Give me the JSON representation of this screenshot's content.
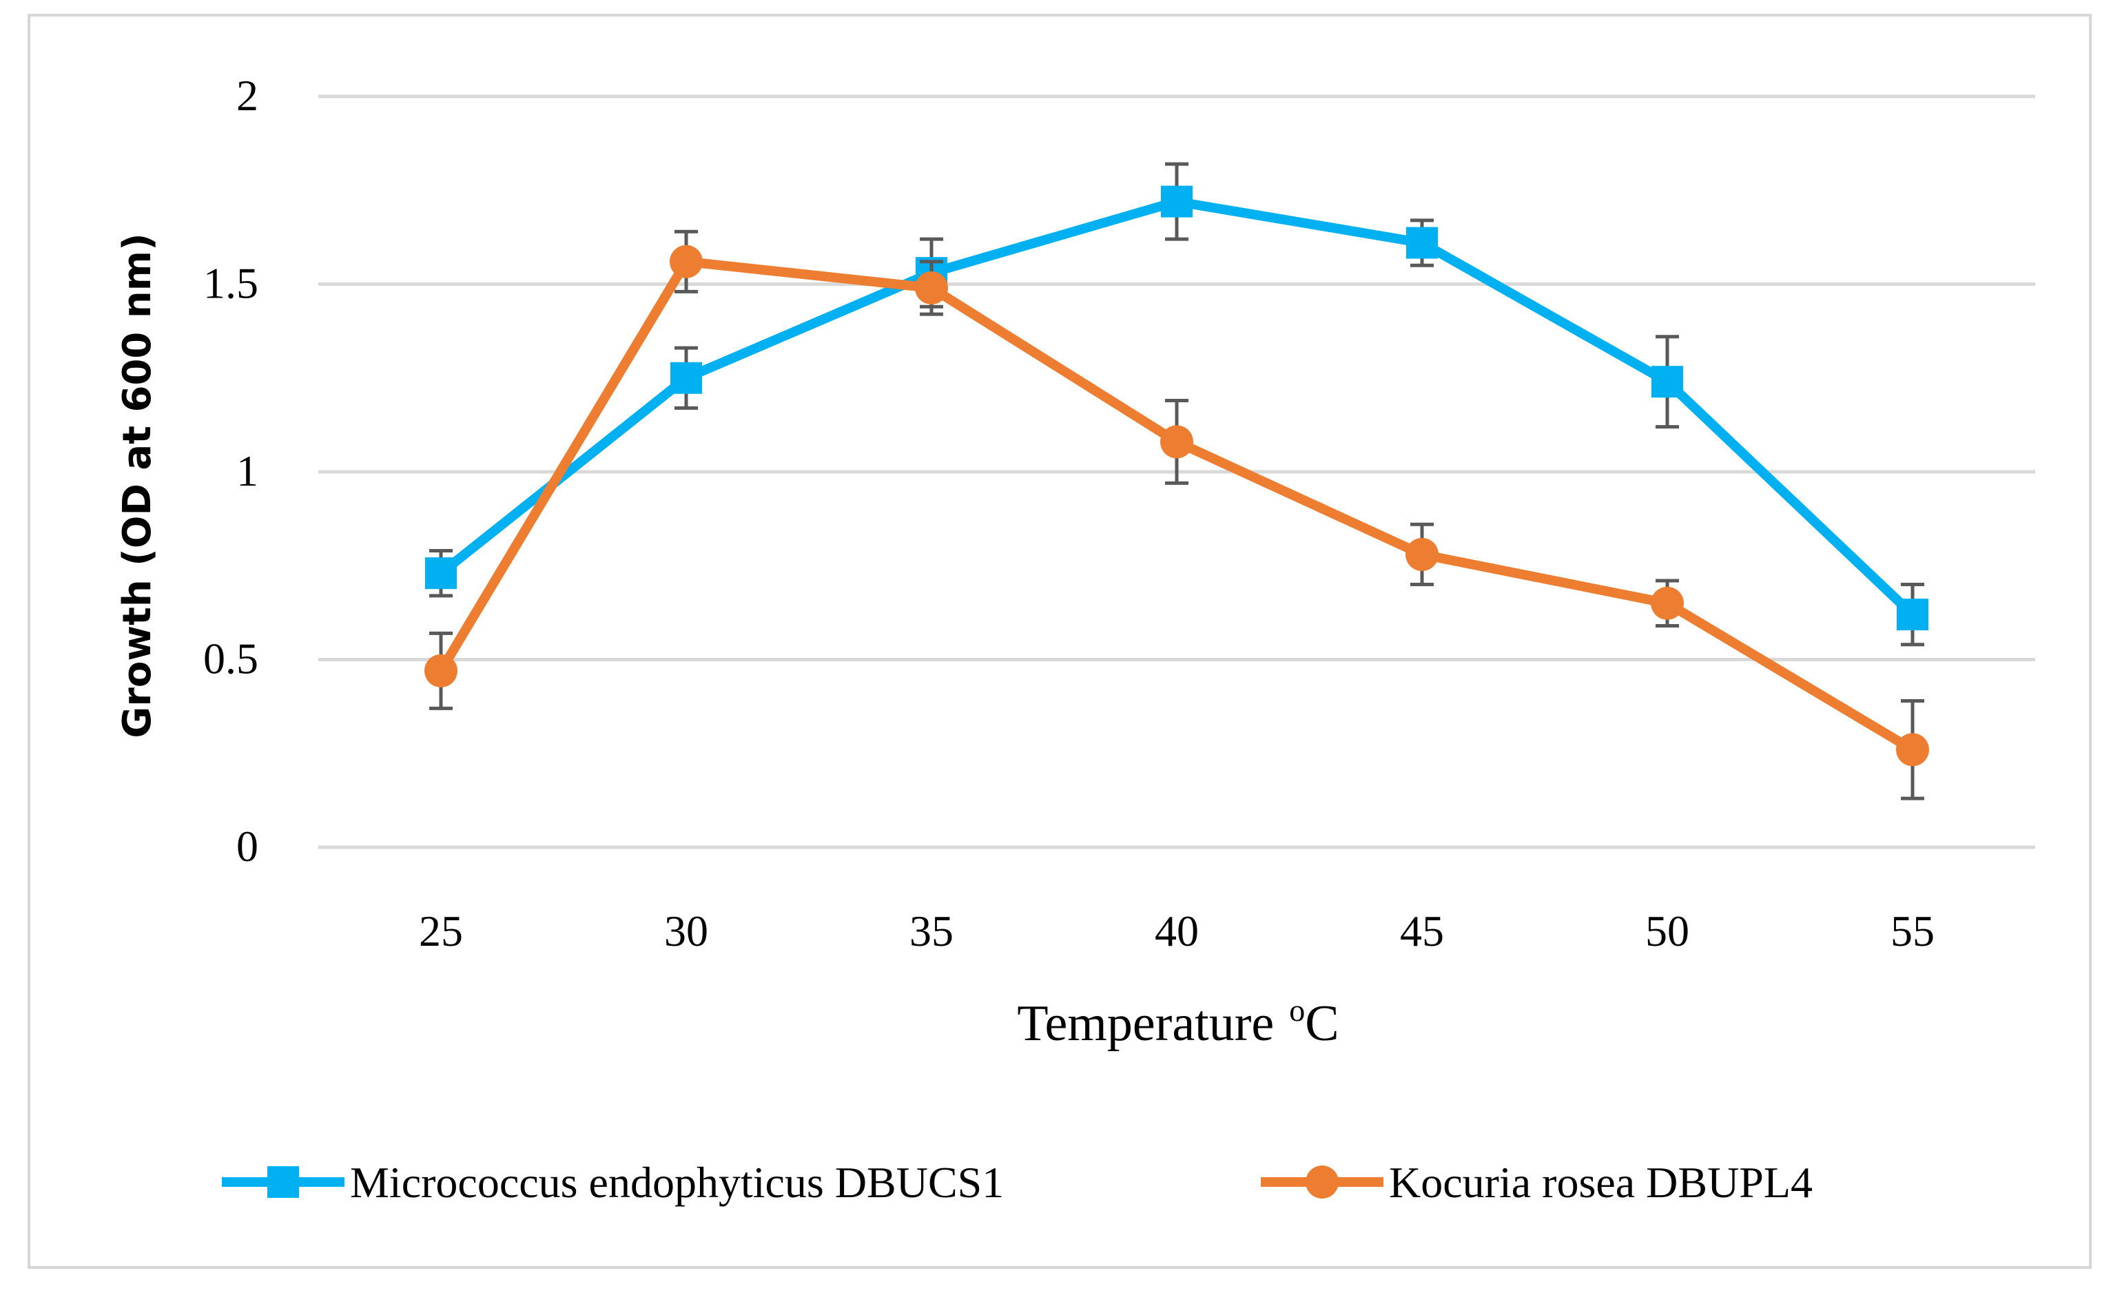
{
  "chart_data": {
    "type": "line",
    "categories": [
      "25",
      "30",
      "35",
      "40",
      "45",
      "50",
      "55"
    ],
    "xlabel": "Temperature",
    "xlabel_unit": "C",
    "xlabel_sup": "o",
    "ylabel": "Growth (OD at 600 nm)",
    "ylim": [
      0,
      2
    ],
    "yticks": [
      "0",
      "0.5",
      "1",
      "1.5",
      "2"
    ],
    "grid": true,
    "legend_position": "bottom",
    "series": [
      {
        "name": "Micrococcus endophyticus DBUCS1",
        "color": "#00b0f0",
        "marker": "square",
        "values": [
          0.73,
          1.25,
          1.53,
          1.72,
          1.61,
          1.24,
          0.62
        ],
        "errors": [
          0.06,
          0.08,
          0.09,
          0.1,
          0.06,
          0.12,
          0.08
        ]
      },
      {
        "name": "Kocuria rosea DBUPL4",
        "color": "#ed7d31",
        "marker": "circle",
        "values": [
          0.47,
          1.56,
          1.49,
          1.08,
          0.78,
          0.65,
          0.26
        ],
        "errors": [
          0.1,
          0.08,
          0.07,
          0.11,
          0.08,
          0.06,
          0.13
        ]
      }
    ]
  }
}
